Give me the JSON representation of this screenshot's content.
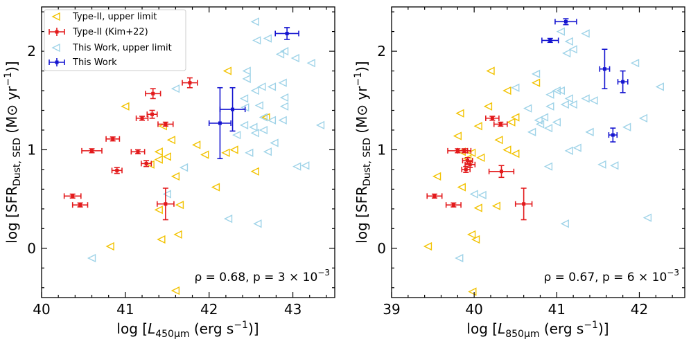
{
  "chart_data": [
    {
      "type": "scatter",
      "xlim": [
        40,
        43.5
      ],
      "ylim": [
        -0.5,
        2.45
      ],
      "xticks": [
        "40",
        "41",
        "42",
        "43"
      ],
      "yticks": [
        "0",
        "1",
        "2"
      ],
      "xlabel_main": "log [",
      "xlabel_sym": "L",
      "xlabel_sub": "450μm",
      "xlabel_tail": " (erg s",
      "xlabel_exp": "−1",
      "xlabel_end": ")]",
      "ylabel_main": "log [SFR",
      "ylabel_sub": "Dust, SED",
      "ylabel_tail": " (M⊙ yr",
      "ylabel_exp": "−1",
      "ylabel_end": ")]",
      "annotation": "ρ  =  0.68, p  =  3 × 10",
      "annotation_exp": "−3",
      "legend_position": "upper-left",
      "legend": [
        {
          "label": "Type-II, upper limit",
          "marker": "tri-open",
          "color": "#f2c200"
        },
        {
          "label": "Type-II (Kim+22)",
          "marker": "errorbar",
          "color": "#e31a1c"
        },
        {
          "label": "This Work, upper limit",
          "marker": "tri-open",
          "color": "#9fd3e8"
        },
        {
          "label": "This Work",
          "marker": "errorbar",
          "color": "#1515d0"
        }
      ],
      "series": [
        {
          "name": "Type-II, upper limit",
          "color": "#f2c200",
          "marker": "tri-open",
          "points": [
            [
              41,
              1.44
            ],
            [
              41.45,
              1.24
            ],
            [
              41.55,
              1.1
            ],
            [
              41.5,
              0.93
            ],
            [
              41.4,
              0.98
            ],
            [
              41.3,
              0.85
            ],
            [
              41.4,
              0.9
            ],
            [
              41.85,
              1.05
            ],
            [
              41.95,
              0.95
            ],
            [
              42.2,
              0.97
            ],
            [
              42.3,
              1.0
            ],
            [
              42.68,
              1.33
            ],
            [
              42.22,
              1.8
            ],
            [
              41.6,
              0.73
            ],
            [
              42.55,
              0.78
            ],
            [
              42.08,
              0.62
            ],
            [
              41.4,
              0.39
            ],
            [
              41.65,
              0.44
            ],
            [
              41.63,
              0.14
            ],
            [
              41.43,
              0.09
            ],
            [
              40.82,
              0.02
            ],
            [
              41.6,
              -0.43
            ]
          ]
        },
        {
          "name": "Type-II (Kim+22)",
          "color": "#e31a1c",
          "marker": "errorbar",
          "points": [
            {
              "x": 40.6,
              "y": 0.99,
              "xerr": 0.12,
              "yerr": 0.02
            },
            {
              "x": 40.85,
              "y": 1.11,
              "xerr": 0.08,
              "yerr": 0.02
            },
            {
              "x": 40.9,
              "y": 0.79,
              "xerr": 0.06,
              "yerr": 0.03
            },
            {
              "x": 40.37,
              "y": 0.53,
              "xerr": 0.1,
              "yerr": 0.02
            },
            {
              "x": 40.46,
              "y": 0.44,
              "xerr": 0.09,
              "yerr": 0.02
            },
            {
              "x": 41.15,
              "y": 0.98,
              "xerr": 0.08,
              "yerr": 0.02
            },
            {
              "x": 41.2,
              "y": 1.32,
              "xerr": 0.07,
              "yerr": 0.02
            },
            {
              "x": 41.32,
              "y": 1.36,
              "xerr": 0.06,
              "yerr": 0.04
            },
            {
              "x": 41.33,
              "y": 1.57,
              "xerr": 0.09,
              "yerr": 0.05
            },
            {
              "x": 41.25,
              "y": 0.86,
              "xerr": 0.06,
              "yerr": 0.03
            },
            {
              "x": 41.48,
              "y": 1.26,
              "xerr": 0.09,
              "yerr": 0.02
            },
            {
              "x": 41.77,
              "y": 1.68,
              "xerr": 0.09,
              "yerr": 0.05
            },
            {
              "x": 41.48,
              "y": 0.45,
              "xerr": 0.1,
              "yerr": 0.16
            }
          ]
        },
        {
          "name": "This Work, upper limit",
          "color": "#9fd3e8",
          "marker": "tri-open",
          "points": [
            [
              42.55,
              2.3
            ],
            [
              42.7,
              2.13
            ],
            [
              42.9,
              2.0
            ],
            [
              42.57,
              2.11
            ],
            [
              42.85,
              1.97
            ],
            [
              43.03,
              1.93
            ],
            [
              43.22,
              1.88
            ],
            [
              42.45,
              1.8
            ],
            [
              42.45,
              1.72
            ],
            [
              42.63,
              1.64
            ],
            [
              42.75,
              1.64
            ],
            [
              42.88,
              1.68
            ],
            [
              42.55,
              1.6
            ],
            [
              42.42,
              1.52
            ],
            [
              42.9,
              1.53
            ],
            [
              42.43,
              1.43
            ],
            [
              42.6,
              1.45
            ],
            [
              42.9,
              1.44
            ],
            [
              42.65,
              1.33
            ],
            [
              42.75,
              1.3
            ],
            [
              42.88,
              1.3
            ],
            [
              42.42,
              1.25
            ],
            [
              42.53,
              1.23
            ],
            [
              43.33,
              1.25
            ],
            [
              42.33,
              1.15
            ],
            [
              42.55,
              1.17
            ],
            [
              42.65,
              1.2
            ],
            [
              42.78,
              1.07
            ],
            [
              42.48,
              0.97
            ],
            [
              42.7,
              0.98
            ],
            [
              43.05,
              0.83
            ],
            [
              43.15,
              0.84
            ],
            [
              41.6,
              1.62
            ],
            [
              41.5,
              0.55
            ],
            [
              41.7,
              0.82
            ],
            [
              42.23,
              0.3
            ],
            [
              42.58,
              0.25
            ],
            [
              40.6,
              -0.1
            ]
          ]
        },
        {
          "name": "This Work",
          "color": "#1515d0",
          "marker": "errorbar",
          "points": [
            {
              "x": 42.93,
              "y": 2.18,
              "xerr": 0.14,
              "yerr": 0.06
            },
            {
              "x": 42.28,
              "y": 1.41,
              "xerr": 0.15,
              "yerr": 0.22
            },
            {
              "x": 42.13,
              "y": 1.27,
              "xerr": 0.13,
              "yerr": 0.36
            }
          ]
        }
      ]
    },
    {
      "type": "scatter",
      "xlim": [
        39,
        42.55
      ],
      "ylim": [
        -0.5,
        2.45
      ],
      "xticks": [
        "39",
        "40",
        "41",
        "42"
      ],
      "yticks": [
        "0",
        "1",
        "2"
      ],
      "xlabel_main": "log [",
      "xlabel_sym": "L",
      "xlabel_sub": "850μm",
      "xlabel_tail": " (erg s",
      "xlabel_exp": "−1",
      "xlabel_end": ")]",
      "ylabel_main": "log [SFR",
      "ylabel_sub": "Dust, SED",
      "ylabel_tail": " (M⊙ yr",
      "ylabel_exp": "−1",
      "ylabel_end": ")]",
      "annotation": "ρ  =  0.67, p  =  6 × 10",
      "annotation_exp": "−3",
      "series": [
        {
          "name": "Type-II, upper limit",
          "color": "#f2c200",
          "marker": "tri-open",
          "points": [
            [
              40.2,
              1.8
            ],
            [
              40.4,
              1.6
            ],
            [
              40.75,
              1.68
            ],
            [
              39.83,
              1.37
            ],
            [
              40.17,
              1.44
            ],
            [
              40.5,
              1.33
            ],
            [
              40.45,
              1.28
            ],
            [
              40.05,
              1.24
            ],
            [
              39.8,
              1.14
            ],
            [
              40.3,
              1.1
            ],
            [
              40.4,
              1.0
            ],
            [
              40.5,
              0.96
            ],
            [
              39.85,
              0.98
            ],
            [
              39.97,
              0.97
            ],
            [
              39.92,
              0.91
            ],
            [
              40.08,
              0.92
            ],
            [
              39.55,
              0.73
            ],
            [
              39.85,
              0.62
            ],
            [
              40.27,
              0.43
            ],
            [
              40.05,
              0.41
            ],
            [
              39.97,
              0.14
            ],
            [
              40.02,
              0.09
            ],
            [
              39.44,
              0.02
            ],
            [
              39.98,
              -0.44
            ]
          ]
        },
        {
          "name": "Type-II (Kim+22)",
          "color": "#e31a1c",
          "marker": "errorbar",
          "points": [
            {
              "x": 40.22,
              "y": 1.32,
              "xerr": 0.08,
              "yerr": 0.02
            },
            {
              "x": 40.32,
              "y": 1.26,
              "xerr": 0.08,
              "yerr": 0.02
            },
            {
              "x": 39.8,
              "y": 0.99,
              "xerr": 0.12,
              "yerr": 0.02
            },
            {
              "x": 39.88,
              "y": 0.99,
              "xerr": 0.08,
              "yerr": 0.02
            },
            {
              "x": 39.92,
              "y": 0.89,
              "xerr": 0.06,
              "yerr": 0.03
            },
            {
              "x": 39.95,
              "y": 0.85,
              "xerr": 0.06,
              "yerr": 0.03
            },
            {
              "x": 39.9,
              "y": 0.8,
              "xerr": 0.05,
              "yerr": 0.03
            },
            {
              "x": 40.33,
              "y": 0.78,
              "xerr": 0.15,
              "yerr": 0.06
            },
            {
              "x": 39.52,
              "y": 0.53,
              "xerr": 0.09,
              "yerr": 0.02
            },
            {
              "x": 39.75,
              "y": 0.44,
              "xerr": 0.09,
              "yerr": 0.02
            },
            {
              "x": 40.6,
              "y": 0.45,
              "xerr": 0.1,
              "yerr": 0.16
            }
          ]
        },
        {
          "name": "This Work, upper limit",
          "color": "#9fd3e8",
          "marker": "tri-open",
          "points": [
            [
              41.05,
              2.2
            ],
            [
              41.35,
              2.18
            ],
            [
              41.15,
              2.1
            ],
            [
              41.2,
              2.02
            ],
            [
              41.12,
              1.98
            ],
            [
              41.95,
              1.88
            ],
            [
              40.75,
              1.77
            ],
            [
              41.0,
              1.6
            ],
            [
              41.05,
              1.6
            ],
            [
              40.92,
              1.56
            ],
            [
              40.5,
              1.63
            ],
            [
              41.15,
              1.52
            ],
            [
              41.35,
              1.52
            ],
            [
              41.45,
              1.5
            ],
            [
              41.1,
              1.46
            ],
            [
              41.2,
              1.46
            ],
            [
              40.92,
              1.44
            ],
            [
              40.65,
              1.42
            ],
            [
              40.78,
              1.3
            ],
            [
              40.85,
              1.33
            ],
            [
              41.0,
              1.28
            ],
            [
              40.8,
              1.26
            ],
            [
              40.9,
              1.22
            ],
            [
              40.7,
              1.18
            ],
            [
              41.4,
              1.18
            ],
            [
              41.85,
              1.23
            ],
            [
              42.05,
              1.32
            ],
            [
              42.25,
              1.64
            ],
            [
              41.25,
              1.02
            ],
            [
              41.15,
              0.99
            ],
            [
              41.55,
              0.85
            ],
            [
              41.7,
              0.84
            ],
            [
              40.9,
              0.83
            ],
            [
              41.1,
              0.25
            ],
            [
              42.1,
              0.31
            ],
            [
              39.82,
              -0.1
            ],
            [
              40.0,
              0.55
            ],
            [
              40.1,
              0.54
            ]
          ]
        },
        {
          "name": "This Work",
          "color": "#1515d0",
          "marker": "errorbar",
          "points": [
            {
              "x": 41.11,
              "y": 2.3,
              "xerr": 0.13,
              "yerr": 0.03
            },
            {
              "x": 40.92,
              "y": 2.11,
              "xerr": 0.1,
              "yerr": 0.02
            },
            {
              "x": 41.58,
              "y": 1.82,
              "xerr": 0.06,
              "yerr": 0.2
            },
            {
              "x": 41.8,
              "y": 1.69,
              "xerr": 0.06,
              "yerr": 0.11
            },
            {
              "x": 41.68,
              "y": 1.15,
              "xerr": 0.05,
              "yerr": 0.07
            }
          ]
        }
      ]
    }
  ]
}
